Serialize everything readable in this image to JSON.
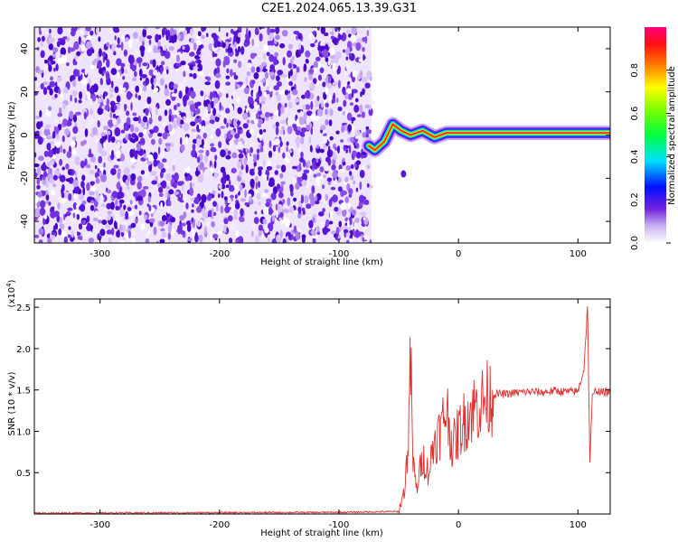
{
  "title": "C2E1.2024.065.13.39.G31",
  "chart_data": [
    {
      "type": "heatmap",
      "name": "spectrogram",
      "xlabel": "Height of straight line (km)",
      "ylabel": "Frequency (Hz)",
      "xlim": [
        -355,
        127
      ],
      "ylim": [
        -50,
        50
      ],
      "x_ticks": [
        -300,
        -200,
        -100,
        0,
        100
      ],
      "y_ticks": [
        -40,
        -20,
        0,
        20,
        40
      ],
      "colorbar": {
        "label": "Normalized spectral amplitude",
        "range": [
          0,
          1
        ],
        "ticks": [
          "0.0",
          "0.2",
          "0.4",
          "0.6",
          "0.8"
        ]
      },
      "noise_region_x": [
        -355,
        -73
      ],
      "signal_track": [
        {
          "x": -75,
          "y": -5
        },
        {
          "x": -70,
          "y": -7
        },
        {
          "x": -62,
          "y": -3
        },
        {
          "x": -55,
          "y": 5
        },
        {
          "x": -48,
          "y": 2
        },
        {
          "x": -40,
          "y": 0
        },
        {
          "x": -30,
          "y": 2
        },
        {
          "x": -20,
          "y": -1
        },
        {
          "x": -10,
          "y": 1
        },
        {
          "x": 0,
          "y": 1
        },
        {
          "x": 50,
          "y": 1
        },
        {
          "x": 100,
          "y": 1
        },
        {
          "x": 127,
          "y": 1
        }
      ]
    },
    {
      "type": "line",
      "name": "snr",
      "xlabel": "Height of straight line (km)",
      "ylabel": "SNR (10 * v/v)",
      "y_scale_label": "(x10",
      "y_scale_exp": "4",
      "y_scale_close": ")",
      "xlim": [
        -355,
        127
      ],
      "ylim": [
        0,
        2.6
      ],
      "x_ticks": [
        -300,
        -200,
        -100,
        0,
        100
      ],
      "y_ticks": [
        0.5,
        1.0,
        1.5,
        2.0,
        2.5
      ],
      "color": "#e03030",
      "x": [
        -355,
        -100,
        -50,
        -45,
        -42,
        -40,
        -38,
        -35,
        -30,
        -25,
        -20,
        -15,
        -10,
        -5,
        0,
        10,
        20,
        30,
        40,
        50,
        60,
        70,
        80,
        90,
        100,
        105,
        108,
        110,
        112,
        115,
        120,
        127
      ],
      "y": [
        0.01,
        0.02,
        0.03,
        0.3,
        0.9,
        1.85,
        0.6,
        0.3,
        0.7,
        0.5,
        0.9,
        1.0,
        1.3,
        0.8,
        1.0,
        1.25,
        1.35,
        1.45,
        1.45,
        1.47,
        1.48,
        1.47,
        1.49,
        1.48,
        1.48,
        1.75,
        2.5,
        0.65,
        1.4,
        1.5,
        1.47,
        1.48
      ]
    }
  ]
}
